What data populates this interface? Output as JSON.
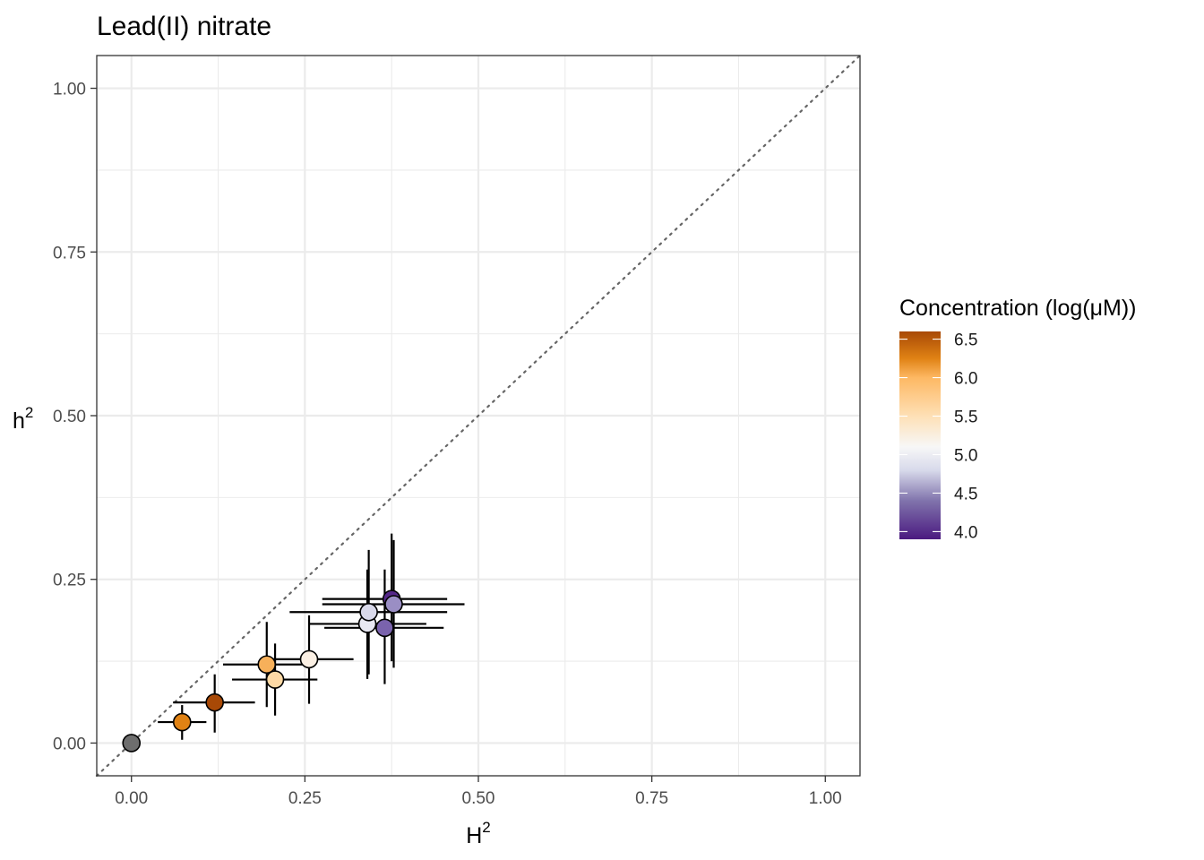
{
  "chart_data": {
    "type": "scatter",
    "title": "Lead(II) nitrate",
    "xlabel": {
      "base": "H",
      "sup": "2"
    },
    "ylabel": {
      "base": "h",
      "sup": "2"
    },
    "xlim": [
      -0.05,
      1.05
    ],
    "ylim": [
      -0.05,
      1.05
    ],
    "x_ticks": [
      0.0,
      0.25,
      0.5,
      0.75,
      1.0
    ],
    "x_tick_labels": [
      "0.00",
      "0.25",
      "0.50",
      "0.75",
      "1.00"
    ],
    "y_ticks": [
      0.0,
      0.25,
      0.5,
      0.75,
      1.0
    ],
    "y_tick_labels": [
      "0.00",
      "0.25",
      "0.50",
      "0.75",
      "1.00"
    ],
    "grid": true,
    "reference_line": {
      "type": "identity",
      "style": "dotted",
      "color": "#666666"
    },
    "colorbar": {
      "title": "Concentration (log(μM))",
      "range": [
        3.9,
        6.6
      ],
      "ticks": [
        6.5,
        6.0,
        5.5,
        5.0,
        4.5,
        4.0
      ],
      "tick_labels": [
        "6.5",
        "6.0",
        "5.5",
        "5.0",
        "4.5",
        "4.0"
      ],
      "stops": [
        {
          "value": 3.9,
          "color": "#4b1a80"
        },
        {
          "value": 4.4,
          "color": "#8073ac"
        },
        {
          "value": 4.8,
          "color": "#d8daeb"
        },
        {
          "value": 5.1,
          "color": "#f7f7f7"
        },
        {
          "value": 5.5,
          "color": "#fee0b6"
        },
        {
          "value": 6.0,
          "color": "#fdb863"
        },
        {
          "value": 6.25,
          "color": "#e08214"
        },
        {
          "value": 6.6,
          "color": "#a84906"
        }
      ],
      "legend_position": "right"
    },
    "points": [
      {
        "x": 0.0,
        "y": 0.0,
        "xerr": [
          0.0,
          0.0
        ],
        "yerr": [
          0.0,
          0.0
        ],
        "conc": null,
        "color": "#6e6e6e"
      },
      {
        "x": 0.073,
        "y": 0.032,
        "xerr": [
          0.038,
          0.108
        ],
        "yerr": [
          0.005,
          0.058
        ],
        "conc": 6.25,
        "color": "#e08214"
      },
      {
        "x": 0.12,
        "y": 0.062,
        "xerr": [
          0.06,
          0.178
        ],
        "yerr": [
          0.016,
          0.105
        ],
        "conc": 6.6,
        "color": "#a84906"
      },
      {
        "x": 0.195,
        "y": 0.12,
        "xerr": [
          0.132,
          0.258
        ],
        "yerr": [
          0.055,
          0.185
        ],
        "conc": 6.0,
        "color": "#f7b05a"
      },
      {
        "x": 0.207,
        "y": 0.097,
        "xerr": [
          0.145,
          0.268
        ],
        "yerr": [
          0.042,
          0.152
        ],
        "conc": 5.6,
        "color": "#fdd9a5"
      },
      {
        "x": 0.256,
        "y": 0.128,
        "xerr": [
          0.193,
          0.32
        ],
        "yerr": [
          0.06,
          0.195
        ],
        "conc": 5.3,
        "color": "#fbf0e4"
      },
      {
        "x": 0.34,
        "y": 0.182,
        "xerr": [
          0.255,
          0.425
        ],
        "yerr": [
          0.098,
          0.265
        ],
        "conc": 4.95,
        "color": "#e8e8f2"
      },
      {
        "x": 0.342,
        "y": 0.2,
        "xerr": [
          0.228,
          0.455
        ],
        "yerr": [
          0.105,
          0.295
        ],
        "conc": 4.85,
        "color": "#d9d9ea"
      },
      {
        "x": 0.365,
        "y": 0.176,
        "xerr": [
          0.278,
          0.45
        ],
        "yerr": [
          0.09,
          0.265
        ],
        "conc": 4.3,
        "color": "#7a63ad"
      },
      {
        "x": 0.375,
        "y": 0.22,
        "xerr": [
          0.275,
          0.455
        ],
        "yerr": [
          0.125,
          0.32
        ],
        "conc": 4.0,
        "color": "#542788"
      },
      {
        "x": 0.378,
        "y": 0.212,
        "xerr": [
          0.275,
          0.48
        ],
        "yerr": [
          0.115,
          0.31
        ],
        "conc": 4.5,
        "color": "#9a8ec4"
      }
    ]
  }
}
